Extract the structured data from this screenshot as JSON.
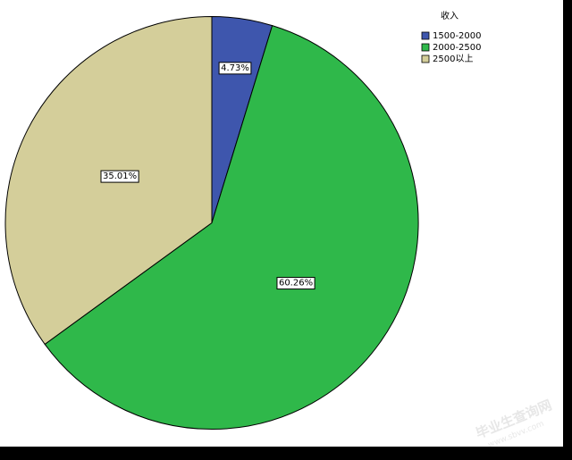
{
  "chart_data": {
    "type": "pie",
    "legend_title": "收入",
    "legend_position": "top-right",
    "categories": [
      "1500-2000",
      "2000-2500",
      "2500以上"
    ],
    "values": [
      4.73,
      60.26,
      35.01
    ],
    "value_labels": [
      "4.73%",
      "60.26%",
      "35.01%"
    ],
    "colors": [
      "#3e56ad",
      "#2fb84a",
      "#d4ce9a"
    ]
  },
  "watermark": {
    "title": "毕业生查询网",
    "url": "www.sbvv.com"
  }
}
